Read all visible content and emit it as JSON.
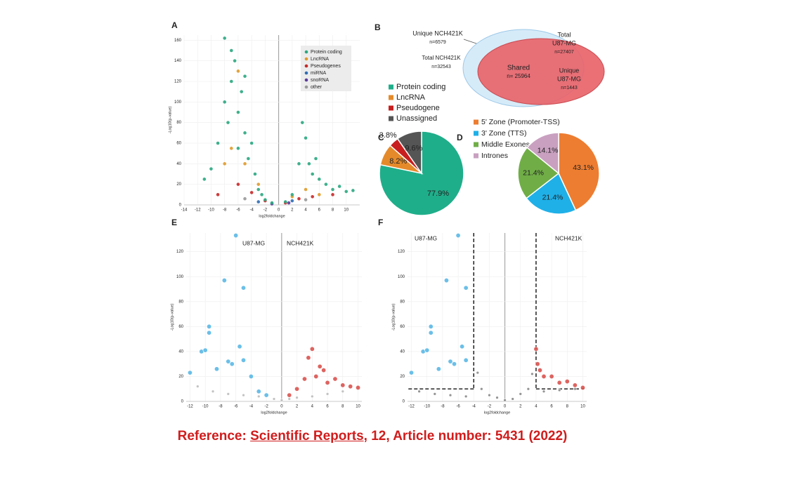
{
  "chart_data": [
    {
      "type": "scatter",
      "label": "A",
      "xlabel": "log2foldchange",
      "ylabel": "-Log10(p-value)",
      "xlim": [
        -14,
        12
      ],
      "xticks": [
        -14,
        -12,
        -10,
        -8,
        -6,
        -4,
        -2,
        0,
        2,
        4,
        6,
        8,
        10
      ],
      "ylim": [
        0,
        165
      ],
      "yticks": [
        0,
        20,
        40,
        60,
        80,
        100,
        120,
        140,
        160
      ],
      "grid": true,
      "legend": "upper right",
      "series": [
        {
          "name": "Protein coding",
          "color": "#2aa77f",
          "x": [
            -11,
            -10,
            -9,
            -8,
            -8,
            -7.5,
            -7,
            -7,
            -6.5,
            -6,
            -6,
            -5.5,
            -5,
            -5,
            -4.5,
            -4,
            -3.5,
            -3,
            -2.5,
            -2,
            -1,
            1,
            2,
            3,
            3.5,
            4,
            4.5,
            5,
            5.5,
            6,
            7,
            8,
            9,
            10,
            11
          ],
          "values": [
            25,
            35,
            60,
            100,
            162,
            80,
            150,
            120,
            140,
            90,
            55,
            110,
            70,
            125,
            45,
            60,
            30,
            15,
            10,
            5,
            2,
            3,
            10,
            40,
            80,
            65,
            40,
            30,
            45,
            25,
            20,
            15,
            18,
            13,
            14
          ]
        },
        {
          "name": "LncRNA",
          "color": "#e09a2a",
          "x": [
            -8,
            -7,
            -6,
            -5,
            -3,
            2,
            4,
            6
          ],
          "values": [
            40,
            55,
            130,
            40,
            20,
            8,
            15,
            10
          ]
        },
        {
          "name": "Pseudogenes",
          "color": "#c62828",
          "x": [
            -9,
            -6,
            -4,
            -2,
            1,
            3,
            5,
            8
          ],
          "values": [
            10,
            20,
            12,
            4,
            2,
            6,
            8,
            10
          ]
        },
        {
          "name": "miRNA",
          "color": "#2f6db5",
          "x": [
            -3,
            2
          ],
          "values": [
            3,
            4
          ]
        },
        {
          "name": "snoRNA",
          "color": "#5b3a9a",
          "x": [
            -1,
            1.5
          ],
          "values": [
            1,
            2
          ]
        },
        {
          "name": "other",
          "color": "#999999",
          "x": [
            -5,
            4
          ],
          "values": [
            6,
            5
          ]
        }
      ]
    },
    {
      "type": "venn",
      "label": "B",
      "colors": [
        "#d6ebf8",
        "#e8646a"
      ],
      "annotations": [
        "Unique NCH421K",
        "n=6579",
        "Total NCH421K",
        "n=32543",
        "Total",
        "U87-MG",
        "n=27407",
        "Shared",
        "n= 25964",
        "Unique",
        "U87-MG",
        "n=1443"
      ]
    },
    {
      "type": "pie",
      "label": "C",
      "categories": [
        "Protein coding",
        "LncRNA",
        "Pseudogene",
        "Unassigned"
      ],
      "values": [
        77.9,
        8.2,
        3.8,
        9.6
      ],
      "value_labels": [
        "77.9%",
        "8.2%",
        "3.8%",
        "9.6%"
      ],
      "colors": [
        "#1fae8a",
        "#e58a2a",
        "#c81e1e",
        "#555555"
      ]
    },
    {
      "type": "pie",
      "label": "D",
      "categories": [
        "5' Zone (Promoter-TSS)",
        "3' Zone (TTS)",
        "Middle Exones",
        "Intrones"
      ],
      "values": [
        43.1,
        21.4,
        21.4,
        14.1
      ],
      "value_labels": [
        "43.1%",
        "21.4%",
        "21.4%",
        "14.1%"
      ],
      "colors": [
        "#ed7d31",
        "#1fb0e8",
        "#70ad47",
        "#c9a0c0"
      ]
    },
    {
      "type": "scatter",
      "label": "E",
      "xlabel": "log2foldchange",
      "ylabel": "-Log10(p-value)",
      "xlim": [
        -12.5,
        10.5
      ],
      "xticks": [
        -12,
        -10,
        -8,
        -6,
        -4,
        -2,
        0,
        2,
        4,
        6,
        8,
        10
      ],
      "ylim": [
        0,
        135
      ],
      "yticks": [
        0,
        20,
        40,
        60,
        80,
        100,
        120
      ],
      "grid": true,
      "series": [
        {
          "name": "U87-MG",
          "color": "#5bb8e6",
          "x": [
            -12,
            -10.5,
            -10,
            -9.5,
            -9.5,
            -8.5,
            -7.5,
            -7,
            -6.5,
            -6,
            -5.5,
            -5,
            -5,
            -4,
            -3,
            -2
          ],
          "values": [
            23,
            40,
            41,
            60,
            55,
            26,
            97,
            32,
            30,
            133,
            44,
            33,
            91,
            20,
            8,
            5
          ]
        },
        {
          "name": "NCH421K",
          "color": "#d9534f",
          "x": [
            1,
            2,
            3,
            3.5,
            4,
            4.5,
            5,
            5.5,
            6,
            7,
            8,
            9,
            10
          ],
          "values": [
            5,
            10,
            18,
            35,
            42,
            20,
            28,
            25,
            15,
            18,
            13,
            12,
            11
          ]
        },
        {
          "color": "#bbbbbb",
          "x": [
            -11,
            -9,
            -7,
            -5,
            -3,
            -1,
            0,
            1,
            2,
            4,
            6,
            8
          ],
          "values": [
            12,
            8,
            6,
            5,
            4,
            2,
            1,
            2,
            3,
            4,
            6,
            8
          ]
        }
      ]
    },
    {
      "type": "scatter",
      "label": "F",
      "xlabel": "log2foldchange",
      "ylabel": "-Log10(p-value)",
      "xlim": [
        -12.5,
        10.5
      ],
      "xticks": [
        -12,
        -10,
        -8,
        -6,
        -4,
        -2,
        0,
        2,
        4,
        6,
        8,
        10
      ],
      "ylim": [
        0,
        135
      ],
      "yticks": [
        0,
        20,
        40,
        60,
        80,
        100,
        120
      ],
      "grid": true,
      "thresholds": {
        "x": [
          -4,
          4
        ],
        "y": 10
      },
      "series": [
        {
          "name": "U87-MG",
          "color": "#5bb8e6",
          "x": [
            -12,
            -10.5,
            -10,
            -9.5,
            -9.5,
            -8.5,
            -7.5,
            -7,
            -6.5,
            -6,
            -5.5,
            -5,
            -5
          ],
          "values": [
            23,
            40,
            41,
            60,
            55,
            26,
            97,
            32,
            30,
            133,
            44,
            33,
            91
          ]
        },
        {
          "name": "NCH421K",
          "color": "#d9534f",
          "x": [
            4,
            4.2,
            4.5,
            5,
            6,
            7,
            8,
            9,
            10
          ],
          "values": [
            42,
            30,
            25,
            20,
            20,
            15,
            16,
            13,
            11
          ]
        },
        {
          "color": "#888888",
          "x": [
            -11,
            -9,
            -7,
            -5,
            -3.5,
            -3,
            -2,
            -1,
            0,
            1,
            2,
            3,
            3.5,
            5,
            7,
            9
          ],
          "values": [
            8,
            6,
            5,
            4,
            23,
            10,
            5,
            3,
            1,
            2,
            6,
            10,
            22,
            8,
            9,
            10
          ]
        }
      ]
    }
  ],
  "reference": {
    "prefix": "Reference: ",
    "journal": "Scientific Reports",
    "suffix": ", 12, Article number: 5431 (2022)"
  }
}
